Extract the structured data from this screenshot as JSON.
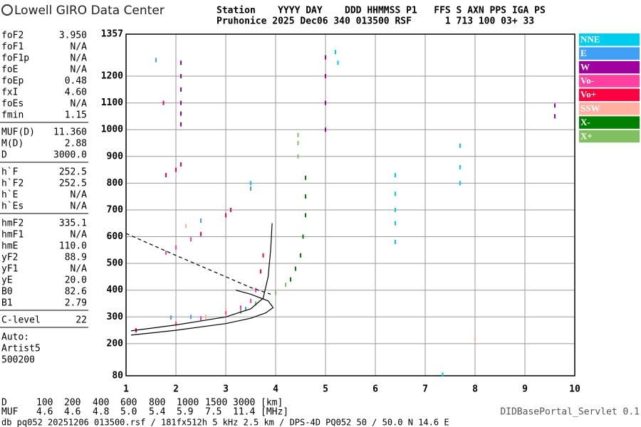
{
  "header": {
    "logo": "Lowell GIRO Data Center",
    "station_line1": "Station    YYYY DAY    DDD HHMMSS P1   FFS S AXN PPS IGA PS",
    "station_line2": "Pruhonice 2025 Dec06 340 013500 RSF      1 713 100 03+ 33"
  },
  "params": [
    [
      {
        "name": "foF2",
        "value": "3.950"
      },
      {
        "name": "foF1",
        "value": "N/A"
      },
      {
        "name": "foF1p",
        "value": "N/A"
      },
      {
        "name": "foE",
        "value": "N/A"
      },
      {
        "name": "foEp",
        "value": "0.48"
      },
      {
        "name": "fxI",
        "value": "4.60"
      },
      {
        "name": "foEs",
        "value": "N/A"
      },
      {
        "name": "fmin",
        "value": "1.15"
      }
    ],
    [
      {
        "name": "MUF(D)",
        "value": "11.360"
      },
      {
        "name": "M(D)",
        "value": "2.88"
      },
      {
        "name": "D",
        "value": "3000.0"
      }
    ],
    [
      {
        "name": "h`F",
        "value": "252.5"
      },
      {
        "name": "h`F2",
        "value": "252.5"
      },
      {
        "name": "h`E",
        "value": "N/A"
      },
      {
        "name": "h`Es",
        "value": "N/A"
      }
    ],
    [
      {
        "name": "hmF2",
        "value": "335.1"
      },
      {
        "name": "hmF1",
        "value": "N/A"
      },
      {
        "name": "hmE",
        "value": "110.0"
      },
      {
        "name": "yF2",
        "value": "88.9"
      },
      {
        "name": "yF1",
        "value": "N/A"
      },
      {
        "name": "yE",
        "value": "20.0"
      },
      {
        "name": "B0",
        "value": "82.6"
      },
      {
        "name": "B1",
        "value": "2.79"
      }
    ],
    [
      {
        "name": "C-level",
        "value": "22"
      }
    ]
  ],
  "notes": [
    "Auto:",
    "Artist5",
    "500200"
  ],
  "muf_table": [
    {
      "label": "D",
      "values": [
        "100",
        "200",
        "400",
        "600",
        "800",
        "1000",
        "1500",
        "3000"
      ],
      "unit": "[km]"
    },
    {
      "label": "MUF",
      "values": [
        "4.6",
        "4.6",
        "4.8",
        "5.0",
        "5.4",
        "5.9",
        "7.5",
        "11.4"
      ],
      "unit": "[MHz]"
    }
  ],
  "servlet": "DIDBasePortal_Servlet 0.1",
  "footer": "db pq052 20251206 013500.rsf / 181fx512h 5 kHz 2.5 km / DPS-4D PQ052 50 / 50.0 N 14.6 E",
  "chart_data": {
    "type": "scatter",
    "xlim": [
      1,
      10
    ],
    "xticks": [
      1,
      2,
      3,
      4,
      5,
      6,
      7,
      8,
      9,
      10
    ],
    "ylim": [
      80,
      1357
    ],
    "yticks": [
      80,
      200,
      300,
      400,
      500,
      600,
      700,
      800,
      900,
      1000,
      1100,
      1200,
      1357
    ],
    "grid": true,
    "series": [
      {
        "name": "NNE",
        "color": "#00ccee",
        "x": [
          6.4,
          6.4,
          6.4,
          6.4,
          6.4,
          7.7,
          7.7,
          7.7,
          5.2,
          7.35,
          3.5,
          5.25
        ],
        "values": [
          580,
          650,
          700,
          760,
          830,
          800,
          860,
          940,
          1290,
          85,
          800,
          1250
        ]
      },
      {
        "name": "E",
        "color": "#3fa0f5",
        "x": [
          1.6,
          2.5,
          3.5,
          1.9,
          2.3,
          3.4
        ],
        "values": [
          1260,
          660,
          780,
          298,
          300,
          330
        ]
      },
      {
        "name": "W",
        "color": "#a000a0",
        "x": [
          2.1,
          2.1,
          2.1,
          2.1,
          2.1,
          2.1,
          5,
          5,
          5,
          5,
          9.6,
          9.6
        ],
        "values": [
          1020,
          1060,
          1100,
          1150,
          1200,
          1250,
          1000,
          1100,
          1200,
          1270,
          1050,
          1090
        ]
      },
      {
        "name": "Vo-",
        "color": "#ff40a0",
        "x": [
          2,
          2.5,
          3,
          3.3,
          3.5,
          3.6,
          1.8,
          2,
          2.3
        ],
        "values": [
          275,
          295,
          315,
          335,
          360,
          400,
          540,
          560,
          590
        ]
      },
      {
        "name": "Vo+",
        "color": "#ff0040",
        "x": [
          1.2,
          3.7,
          3.75,
          2.5,
          3,
          3.1,
          1.8,
          2,
          2.1,
          1.75
        ],
        "values": [
          250,
          470,
          530,
          610,
          680,
          700,
          830,
          850,
          870,
          1100
        ]
      },
      {
        "name": "SSW",
        "color": "#ffb0a0",
        "x": [
          2.6,
          3,
          2.2,
          8
        ],
        "values": [
          300,
          330,
          640,
          220
        ]
      },
      {
        "name": "X-",
        "color": "#008000",
        "x": [
          4.3,
          4.4,
          4.5,
          4.55,
          4.6,
          4.6,
          4.6
        ],
        "values": [
          440,
          480,
          530,
          600,
          680,
          750,
          820
        ]
      },
      {
        "name": "X+",
        "color": "#80c060",
        "x": [
          3.3,
          3.6,
          4,
          4.2,
          4.45,
          4.45,
          4.45
        ],
        "values": [
          320,
          350,
          390,
          420,
          900,
          950,
          980
        ]
      }
    ],
    "lines": [
      {
        "color": "#000",
        "dash": false,
        "x": [
          1.1,
          2,
          3,
          3.5,
          3.75,
          3.85,
          3.9,
          3.93
        ],
        "values": [
          248,
          270,
          300,
          330,
          370,
          450,
          550,
          650
        ]
      },
      {
        "color": "#000",
        "dash": false,
        "x": [
          1.1,
          2,
          3,
          3.5,
          3.8,
          3.95,
          3.85,
          3.5,
          3.2
        ],
        "values": [
          232,
          250,
          275,
          295,
          315,
          335,
          360,
          385,
          400
        ]
      },
      {
        "color": "#000",
        "dash": true,
        "x": [
          1,
          2,
          3,
          3.5,
          3.9
        ],
        "values": [
          612,
          530,
          450,
          410,
          385
        ]
      }
    ]
  }
}
